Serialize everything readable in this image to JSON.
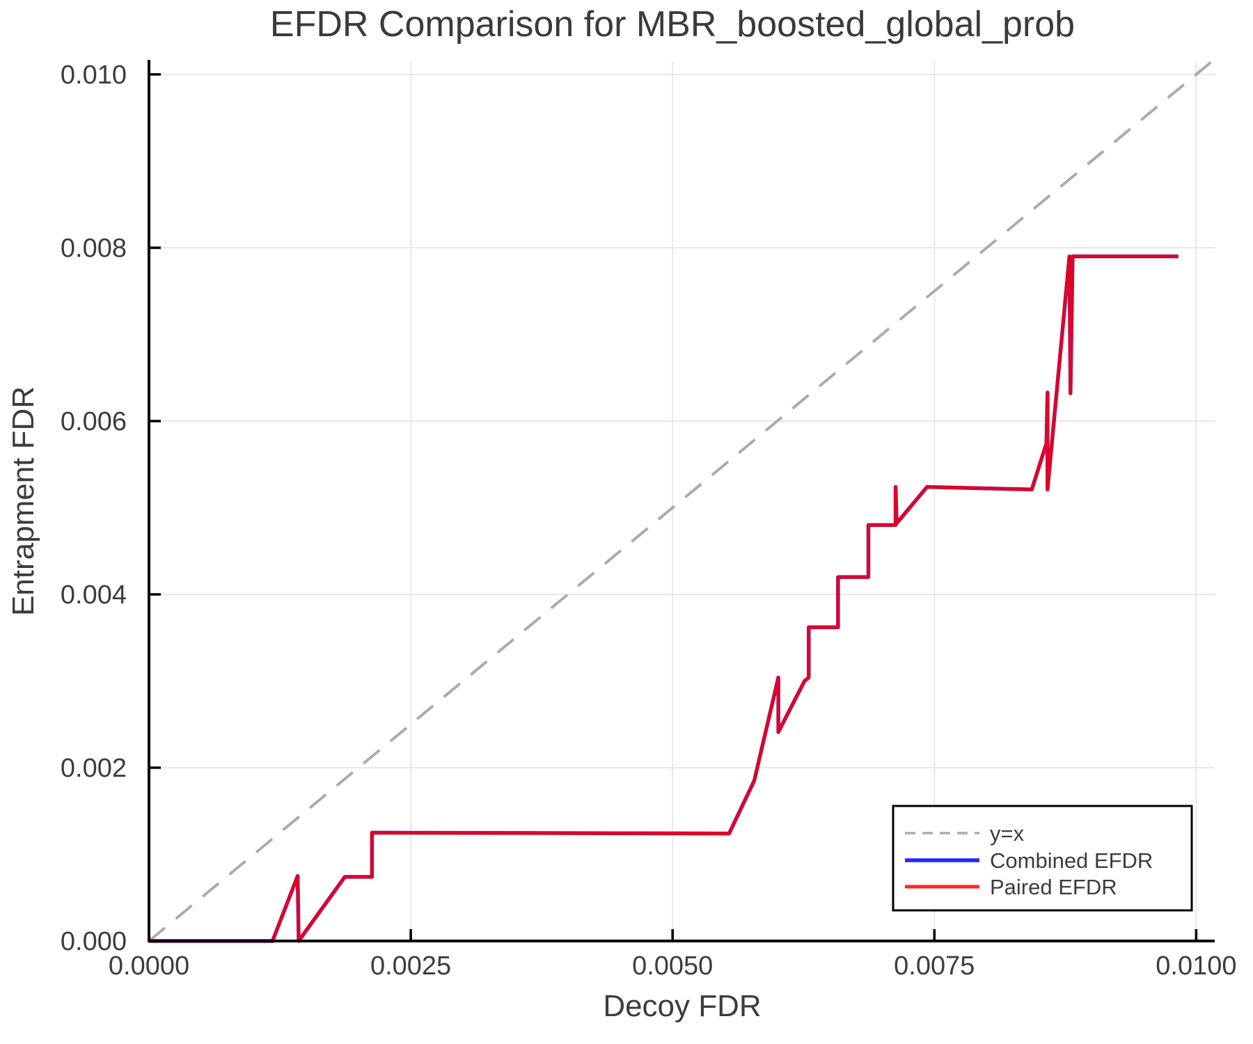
{
  "chart_data": {
    "type": "line",
    "title": "EFDR Comparison for MBR_boosted_global_prob",
    "xlabel": "Decoy FDR",
    "ylabel": "Entrapment FDR",
    "xlim": [
      0,
      0.010177
    ],
    "ylim": [
      0,
      0.010152
    ],
    "grid": true,
    "legend_position": "lower right",
    "x_ticks": {
      "values": [
        0,
        0.0025,
        0.005,
        0.0075,
        0.01
      ],
      "labels": [
        "0.0000",
        "0.0025",
        "0.0050",
        "0.0075",
        "0.0100"
      ]
    },
    "y_ticks": {
      "values": [
        0,
        0.002,
        0.004,
        0.006,
        0.008,
        0.01
      ],
      "labels": [
        "0.000",
        "0.002",
        "0.004",
        "0.006",
        "0.008",
        "0.010"
      ]
    },
    "reference_line": {
      "label": "y=x",
      "color": "#ababab",
      "dash": [
        30,
        20
      ],
      "width": 4,
      "points": [
        [
          0,
          0
        ],
        [
          0.010152,
          0.010152
        ]
      ]
    },
    "series": [
      {
        "name": "Combined EFDR",
        "color": "#0000ff",
        "opacity": 0.85,
        "width": 5.5,
        "points": [
          [
            0.0,
            0.0
          ],
          [
            0.00118,
            0.0
          ],
          [
            0.00142,
            0.00075
          ],
          [
            0.00143,
            0.0
          ],
          [
            0.00187,
            0.00074
          ],
          [
            0.00213,
            0.00074
          ],
          [
            0.00213,
            0.00125
          ],
          [
            0.00554,
            0.00124
          ],
          [
            0.00578,
            0.00185
          ],
          [
            0.00601,
            0.00304
          ],
          [
            0.00601,
            0.00241
          ],
          [
            0.00626,
            0.003
          ],
          [
            0.0063,
            0.00304
          ],
          [
            0.0063,
            0.00362
          ],
          [
            0.00658,
            0.00362
          ],
          [
            0.00658,
            0.0042
          ],
          [
            0.00687,
            0.0042
          ],
          [
            0.00687,
            0.0048
          ],
          [
            0.00713,
            0.0048
          ],
          [
            0.00713,
            0.00524
          ],
          [
            0.00714,
            0.00482
          ],
          [
            0.00743,
            0.00524
          ],
          [
            0.00843,
            0.00521
          ],
          [
            0.00857,
            0.00574
          ],
          [
            0.00858,
            0.00633
          ],
          [
            0.00858,
            0.00521
          ],
          [
            0.00879,
            0.0079
          ],
          [
            0.0088,
            0.00632
          ],
          [
            0.00882,
            0.0079
          ],
          [
            0.00983,
            0.0079
          ]
        ]
      },
      {
        "name": "Paired EFDR",
        "color": "#ff0000",
        "opacity": 0.85,
        "width": 5,
        "points": [
          [
            0.0,
            0.0
          ],
          [
            0.00118,
            0.0
          ],
          [
            0.00142,
            0.00075
          ],
          [
            0.00143,
            0.0
          ],
          [
            0.00187,
            0.00074
          ],
          [
            0.00213,
            0.00074
          ],
          [
            0.00213,
            0.00125
          ],
          [
            0.00554,
            0.00124
          ],
          [
            0.00578,
            0.00185
          ],
          [
            0.00601,
            0.00304
          ],
          [
            0.00601,
            0.00241
          ],
          [
            0.00626,
            0.003
          ],
          [
            0.0063,
            0.00304
          ],
          [
            0.0063,
            0.00362
          ],
          [
            0.00658,
            0.00362
          ],
          [
            0.00658,
            0.0042
          ],
          [
            0.00687,
            0.0042
          ],
          [
            0.00687,
            0.0048
          ],
          [
            0.00713,
            0.0048
          ],
          [
            0.00713,
            0.00524
          ],
          [
            0.00714,
            0.00482
          ],
          [
            0.00743,
            0.00524
          ],
          [
            0.00843,
            0.00521
          ],
          [
            0.00857,
            0.00574
          ],
          [
            0.00858,
            0.00633
          ],
          [
            0.00858,
            0.00521
          ],
          [
            0.00879,
            0.0079
          ],
          [
            0.0088,
            0.00632
          ],
          [
            0.00882,
            0.0079
          ],
          [
            0.00983,
            0.0079
          ]
        ]
      }
    ],
    "legend": {
      "entries": [
        {
          "label": "y=x",
          "color": "#ababab",
          "dash": [
            15,
            10
          ],
          "width": 3.5,
          "opacity": 1
        },
        {
          "label": "Combined EFDR",
          "color": "#0000ff",
          "dash": null,
          "width": 5.5,
          "opacity": 0.85
        },
        {
          "label": "Paired EFDR",
          "color": "#ff0000",
          "dash": null,
          "width": 5,
          "opacity": 0.85
        }
      ]
    },
    "colors": {
      "grid": "#e8e8e8",
      "spine": "#000000",
      "text": "#3c3c3c",
      "title": "#3a3a3a"
    }
  }
}
